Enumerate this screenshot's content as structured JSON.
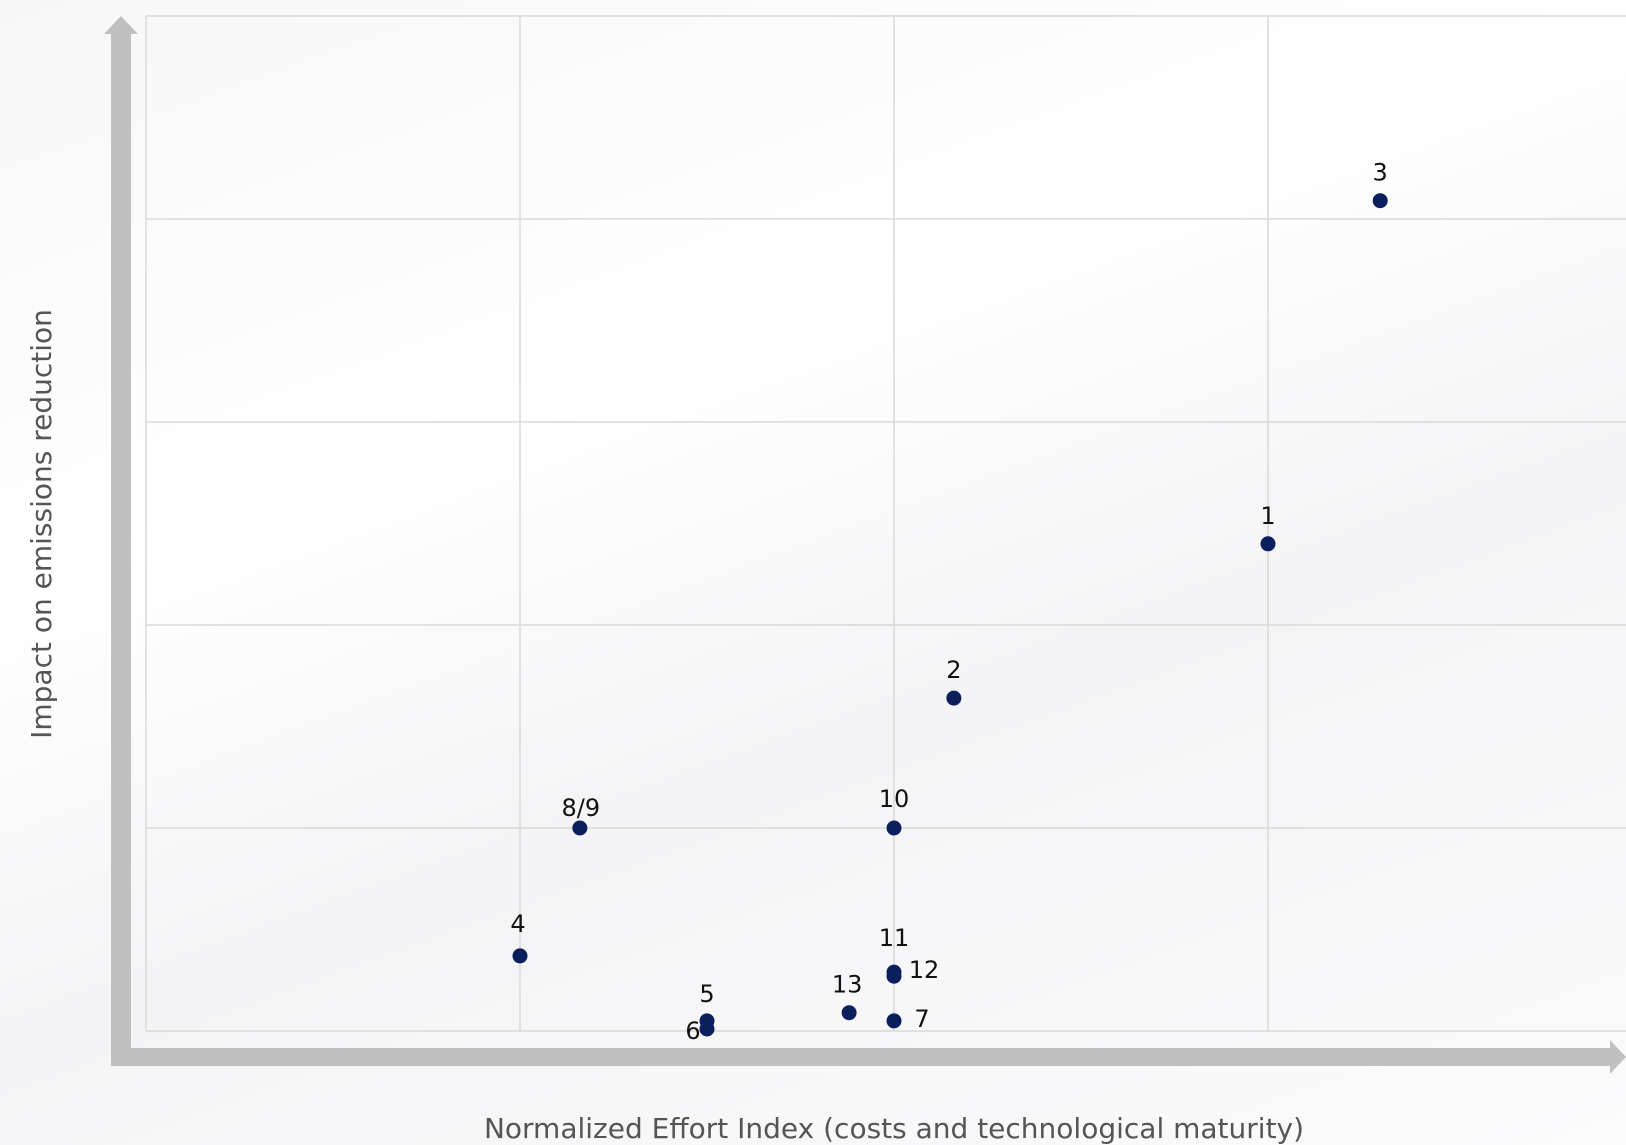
{
  "chart_data": {
    "type": "scatter",
    "title": "",
    "xlabel": "Normalized Effort Index (costs and technological maturity)",
    "ylabel": "Impact on emissions reduction",
    "xlim": [
      0,
      4
    ],
    "ylim": [
      0,
      5
    ],
    "grid": true,
    "x_ticks": [
      1,
      2,
      3
    ],
    "y_ticks": [
      1,
      2,
      3,
      4
    ],
    "colors": {
      "point": "#0b1f5c",
      "axis": "#c0c0c0",
      "grid": "#d9d9d9"
    },
    "points": [
      {
        "label": "1",
        "x": 3.0,
        "y": 2.4
      },
      {
        "label": "2",
        "x": 2.16,
        "y": 1.64
      },
      {
        "label": "3",
        "x": 3.3,
        "y": 4.09
      },
      {
        "label": "4",
        "x": 1.0,
        "y": 0.37
      },
      {
        "label": "5",
        "x": 1.5,
        "y": 0.05
      },
      {
        "label": "6",
        "x": 1.5,
        "y": 0.01
      },
      {
        "label": "7",
        "x": 2.0,
        "y": 0.05
      },
      {
        "label": "8/9",
        "x": 1.16,
        "y": 1.0
      },
      {
        "label": "10",
        "x": 2.0,
        "y": 1.0
      },
      {
        "label": "11",
        "x": 2.0,
        "y": 0.29
      },
      {
        "label": "12",
        "x": 2.0,
        "y": 0.27
      },
      {
        "label": "13",
        "x": 1.88,
        "y": 0.09
      }
    ]
  }
}
